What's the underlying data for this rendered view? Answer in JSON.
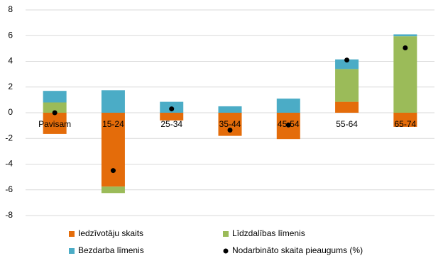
{
  "chart_data": {
    "type": "bar",
    "stacked": true,
    "grid": true,
    "categories": [
      "Pavisam",
      "15-24",
      "25-34",
      "35-44",
      "45-54",
      "55-64",
      "65-74"
    ],
    "series": [
      {
        "name": "Iedzīvotāju skaits",
        "color": "#e46c0a",
        "type": "bar",
        "values": [
          -1.65,
          -5.75,
          -0.6,
          -1.8,
          -2.05,
          0.85,
          -1.1
        ]
      },
      {
        "name": "Līdzdalības līmenis",
        "color": "#9bbb59",
        "type": "bar",
        "values": [
          0.8,
          -0.5,
          0,
          0,
          0,
          2.55,
          5.95
        ]
      },
      {
        "name": "Bezdarba līmenis",
        "color": "#4bacc6",
        "type": "bar",
        "values": [
          0.9,
          1.75,
          0.85,
          0.5,
          1.1,
          0.75,
          0.15
        ]
      },
      {
        "name": "Nodarbināto skaita pieaugums (%)",
        "color": "#000000",
        "type": "scatter",
        "values": [
          0,
          -4.5,
          0.3,
          -1.35,
          -0.95,
          4.1,
          5.05
        ]
      }
    ],
    "ylim": [
      -8,
      8
    ],
    "yticks": [
      -8,
      -6,
      -4,
      -2,
      0,
      2,
      4,
      6,
      8
    ]
  }
}
